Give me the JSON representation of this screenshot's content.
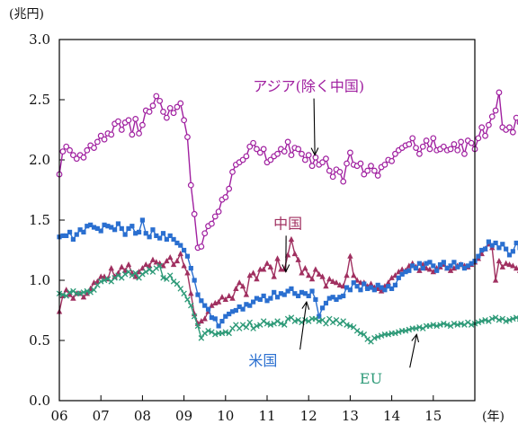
{
  "chart_data": {
    "type": "line",
    "ylabel": "(兆円)",
    "xlabel": "(年)",
    "ylim": [
      0,
      3.0
    ],
    "yticks": [
      "0.0",
      "0.5",
      "1.0",
      "1.5",
      "2.0",
      "2.5",
      "3.0"
    ],
    "xlim": [
      2006.0,
      2016.0
    ],
    "xticks": [
      "06",
      "07",
      "08",
      "09",
      "10",
      "11",
      "12",
      "13",
      "14",
      "15"
    ],
    "x_start": 2006.0,
    "x_step": 0.0833333,
    "series": [
      {
        "name": "アジア(除く中国)",
        "color": "#a020a0",
        "marker": "circle",
        "values": [
          1.88,
          2.07,
          2.11,
          2.08,
          2.04,
          2.01,
          2.04,
          2.02,
          2.08,
          2.12,
          2.1,
          2.15,
          2.2,
          2.17,
          2.22,
          2.21,
          2.3,
          2.32,
          2.25,
          2.31,
          2.33,
          2.21,
          2.34,
          2.22,
          2.29,
          2.41,
          2.4,
          2.45,
          2.53,
          2.49,
          2.4,
          2.35,
          2.43,
          2.39,
          2.44,
          2.47,
          2.33,
          2.19,
          1.79,
          1.55,
          1.27,
          1.28,
          1.39,
          1.45,
          1.47,
          1.53,
          1.57,
          1.67,
          1.69,
          1.76,
          1.9,
          1.96,
          1.98,
          2.0,
          2.03,
          2.11,
          2.14,
          2.09,
          2.06,
          2.09,
          1.98,
          2.0,
          2.03,
          2.05,
          2.09,
          2.07,
          2.15,
          2.04,
          2.1,
          2.09,
          2.05,
          2.0,
          2.04,
          1.95,
          2.02,
          1.96,
          1.98,
          2.01,
          1.91,
          1.86,
          1.92,
          1.9,
          1.82,
          1.97,
          2.06,
          1.96,
          1.95,
          1.97,
          1.88,
          1.91,
          1.95,
          1.91,
          1.87,
          1.94,
          1.96,
          2.0,
          1.99,
          2.05,
          2.08,
          2.1,
          2.12,
          2.13,
          2.18,
          2.1,
          2.05,
          2.11,
          2.16,
          2.09,
          2.18,
          2.08,
          2.09,
          2.11,
          2.08,
          2.09,
          2.13,
          2.08,
          2.15,
          2.05,
          2.16,
          2.14,
          2.09,
          2.18,
          2.27,
          2.2,
          2.29,
          2.36,
          2.41,
          2.56,
          2.27,
          2.25,
          2.27,
          2.23,
          2.35,
          2.31,
          2.33,
          2.24,
          2.25,
          2.24,
          2.27,
          2.13,
          2.12
        ]
      },
      {
        "name": "中国",
        "color": "#a03060",
        "marker": "triangle",
        "values": [
          0.74,
          0.87,
          0.92,
          0.88,
          0.85,
          0.89,
          0.89,
          0.86,
          0.89,
          0.93,
          0.98,
          0.99,
          1.03,
          1.03,
          1.01,
          1.1,
          1.03,
          1.06,
          1.11,
          1.08,
          1.13,
          1.06,
          1.03,
          1.07,
          1.1,
          1.13,
          1.12,
          1.17,
          1.15,
          1.14,
          1.12,
          1.16,
          1.19,
          1.13,
          1.16,
          1.22,
          1.12,
          1.06,
          0.89,
          0.72,
          0.64,
          0.66,
          0.68,
          0.74,
          0.79,
          0.81,
          0.82,
          0.86,
          0.84,
          0.87,
          0.85,
          0.93,
          0.98,
          0.95,
          0.88,
          1.04,
          1.06,
          1.01,
          1.09,
          1.09,
          1.14,
          1.11,
          1.03,
          1.18,
          1.09,
          1.09,
          1.21,
          1.34,
          1.22,
          1.17,
          1.06,
          1.1,
          1.04,
          1.01,
          1.09,
          1.05,
          1.03,
          0.95,
          1.01,
          0.99,
          0.98,
          0.96,
          0.95,
          1.04,
          1.2,
          1.04,
          1.0,
          0.98,
          0.98,
          0.95,
          0.97,
          0.94,
          0.93,
          0.91,
          0.95,
          0.98,
          1.02,
          1.04,
          1.07,
          1.09,
          1.08,
          1.12,
          1.14,
          1.11,
          1.08,
          1.13,
          1.1,
          1.09,
          1.07,
          1.1,
          1.11,
          1.13,
          1.1,
          1.08,
          1.1,
          1.12,
          1.13,
          1.12,
          1.11,
          1.13,
          1.15,
          1.18,
          1.22,
          1.26,
          1.3,
          1.27,
          1.0,
          1.16,
          1.11,
          1.14,
          1.13,
          1.12,
          1.1,
          1.08,
          1.12,
          1.1,
          1.09,
          1.07,
          1.06
        ]
      },
      {
        "name": "米国",
        "color": "#2a6fd0",
        "marker": "square",
        "values": [
          1.36,
          1.37,
          1.37,
          1.4,
          1.34,
          1.38,
          1.42,
          1.4,
          1.45,
          1.46,
          1.44,
          1.43,
          1.41,
          1.46,
          1.45,
          1.44,
          1.42,
          1.47,
          1.43,
          1.38,
          1.43,
          1.45,
          1.39,
          1.4,
          1.5,
          1.39,
          1.36,
          1.42,
          1.37,
          1.35,
          1.39,
          1.34,
          1.37,
          1.34,
          1.31,
          1.29,
          1.25,
          1.2,
          1.1,
          1.0,
          0.88,
          0.83,
          0.79,
          0.76,
          0.69,
          0.68,
          0.62,
          0.66,
          0.7,
          0.72,
          0.74,
          0.75,
          0.78,
          0.76,
          0.8,
          0.79,
          0.82,
          0.85,
          0.84,
          0.87,
          0.83,
          0.85,
          0.9,
          0.86,
          0.89,
          0.88,
          0.91,
          0.93,
          0.89,
          0.87,
          0.9,
          0.89,
          0.87,
          0.91,
          0.84,
          0.7,
          0.77,
          0.81,
          0.85,
          0.86,
          0.84,
          0.86,
          0.87,
          0.94,
          0.92,
          0.98,
          0.95,
          0.92,
          0.97,
          0.93,
          0.94,
          0.92,
          0.96,
          0.94,
          0.92,
          0.95,
          0.93,
          0.96,
          1.02,
          1.05,
          1.07,
          1.08,
          1.12,
          1.1,
          1.14,
          1.1,
          1.14,
          1.15,
          1.12,
          1.08,
          1.13,
          1.15,
          1.1,
          1.12,
          1.15,
          1.11,
          1.13,
          1.1,
          1.12,
          1.14,
          1.16,
          1.2,
          1.25,
          1.26,
          1.32,
          1.29,
          1.31,
          1.27,
          1.3,
          1.26,
          1.21,
          1.24,
          1.31,
          1.27,
          1.25,
          1.28,
          1.25,
          1.24,
          1.27
        ]
      },
      {
        "name": "EU",
        "color": "#2e9a78",
        "marker": "x",
        "values": [
          0.89,
          0.88,
          0.87,
          0.9,
          0.91,
          0.89,
          0.89,
          0.9,
          0.91,
          0.9,
          0.92,
          0.96,
          0.99,
          1.0,
          1.01,
          0.99,
          1.02,
          1.04,
          1.02,
          1.05,
          1.07,
          1.04,
          1.06,
          1.02,
          1.05,
          1.07,
          1.09,
          1.07,
          1.1,
          1.12,
          1.02,
          1.01,
          1.04,
          0.99,
          0.97,
          0.93,
          0.89,
          0.84,
          0.79,
          0.7,
          0.62,
          0.52,
          0.56,
          0.58,
          0.57,
          0.55,
          0.56,
          0.56,
          0.57,
          0.56,
          0.6,
          0.63,
          0.6,
          0.63,
          0.61,
          0.65,
          0.6,
          0.62,
          0.63,
          0.66,
          0.64,
          0.63,
          0.64,
          0.66,
          0.64,
          0.63,
          0.68,
          0.69,
          0.66,
          0.67,
          0.65,
          0.67,
          0.66,
          0.68,
          0.68,
          0.66,
          0.67,
          0.64,
          0.68,
          0.65,
          0.67,
          0.64,
          0.66,
          0.63,
          0.62,
          0.61,
          0.58,
          0.56,
          0.55,
          0.51,
          0.49,
          0.52,
          0.53,
          0.54,
          0.55,
          0.55,
          0.56,
          0.56,
          0.57,
          0.58,
          0.58,
          0.59,
          0.6,
          0.6,
          0.61,
          0.6,
          0.62,
          0.62,
          0.63,
          0.62,
          0.63,
          0.64,
          0.63,
          0.62,
          0.64,
          0.63,
          0.64,
          0.63,
          0.65,
          0.63,
          0.64,
          0.65,
          0.66,
          0.67,
          0.66,
          0.68,
          0.69,
          0.67,
          0.68,
          0.66,
          0.67,
          0.68,
          0.69,
          0.68,
          0.67,
          0.68,
          0.69,
          0.68,
          0.69,
          0.68,
          0.69
        ]
      }
    ],
    "annotations": [
      {
        "text": "アジア(除く中国)",
        "series": 0,
        "label_x": 2012.0,
        "label_y": 2.57,
        "arrow_x": 2012.15,
        "arrow_y": 2.04
      },
      {
        "text": "中国",
        "series": 1,
        "label_x": 2011.5,
        "label_y": 1.43,
        "arrow_x": 2011.45,
        "arrow_y": 1.07
      },
      {
        "text": "米国",
        "series": 2,
        "label_x": 2010.9,
        "label_y": 0.29,
        "arrow_x": 2011.95,
        "arrow_y": 0.82
      },
      {
        "text": "EU",
        "series": 3,
        "label_x": 2013.5,
        "label_y": 0.14,
        "arrow_x": 2014.6,
        "arrow_y": 0.55
      }
    ],
    "grid": false,
    "legend": "none"
  }
}
